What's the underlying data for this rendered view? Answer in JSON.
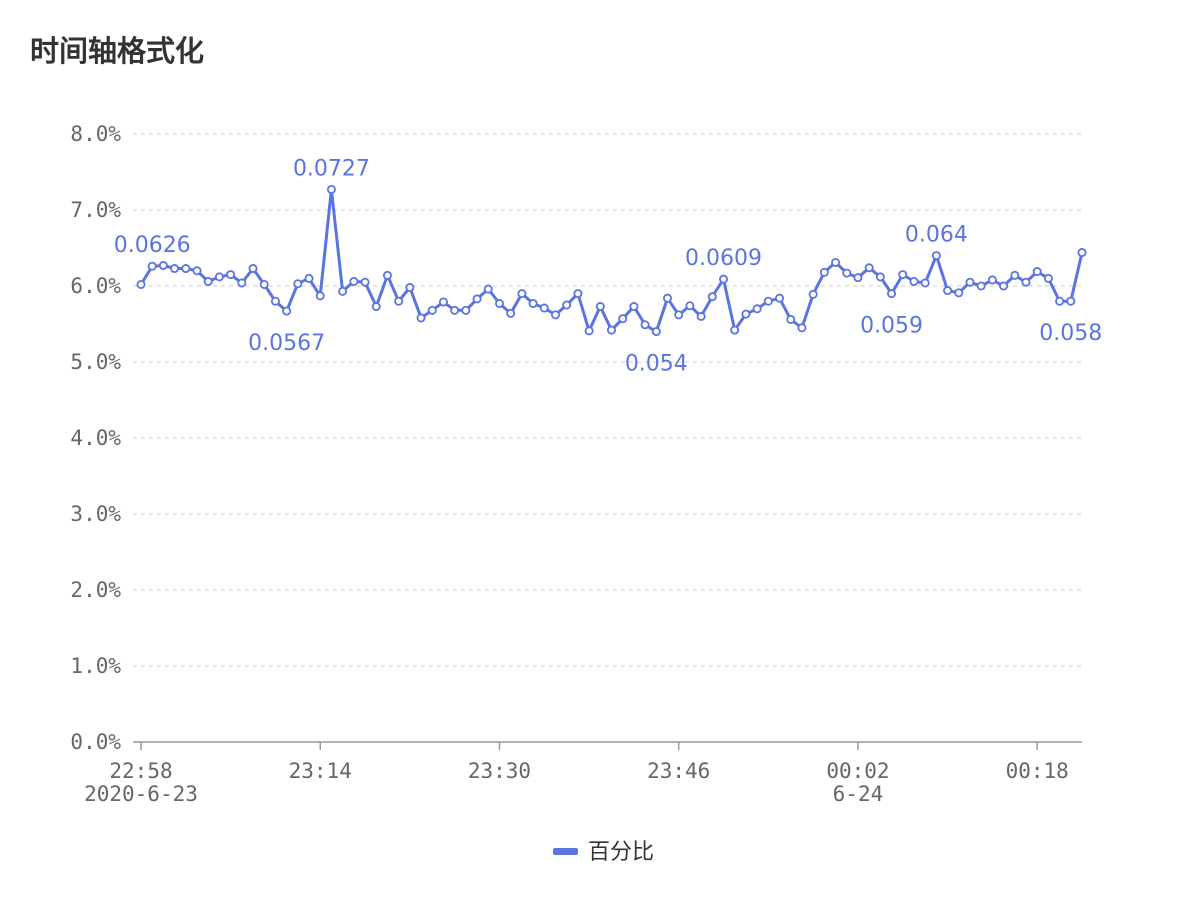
{
  "title": "时间轴格式化",
  "chart_data": {
    "type": "line",
    "title": "时间轴格式化",
    "ylim": [
      0,
      0.08
    ],
    "y_ticks": [
      "0.0%",
      "1.0%",
      "2.0%",
      "3.0%",
      "4.0%",
      "5.0%",
      "6.0%",
      "7.0%",
      "8.0%"
    ],
    "y_tick_values": [
      0,
      0.01,
      0.02,
      0.03,
      0.04,
      0.05,
      0.06,
      0.07,
      0.08
    ],
    "x_range_minutes": [
      0,
      84
    ],
    "x_ticks": [
      {
        "minute": 0,
        "label": "22:58",
        "sublabel": "2020-6-23"
      },
      {
        "minute": 16,
        "label": "23:14",
        "sublabel": ""
      },
      {
        "minute": 32,
        "label": "23:30",
        "sublabel": ""
      },
      {
        "minute": 48,
        "label": "23:46",
        "sublabel": ""
      },
      {
        "minute": 64,
        "label": "00:02",
        "sublabel": "6-24"
      },
      {
        "minute": 80,
        "label": "00:18",
        "sublabel": ""
      }
    ],
    "grid": true,
    "legend": "bottom-center",
    "series": [
      {
        "name": "百分比",
        "color": "#5b74e0",
        "values": [
          0.0602,
          0.0626,
          0.0627,
          0.0623,
          0.0623,
          0.062,
          0.0606,
          0.0612,
          0.0615,
          0.0604,
          0.0623,
          0.0602,
          0.058,
          0.0567,
          0.0603,
          0.061,
          0.0587,
          0.0727,
          0.0593,
          0.0606,
          0.0605,
          0.0573,
          0.0614,
          0.058,
          0.0598,
          0.0558,
          0.0568,
          0.0579,
          0.0568,
          0.0568,
          0.0583,
          0.0596,
          0.0577,
          0.0564,
          0.059,
          0.0577,
          0.0571,
          0.0562,
          0.0575,
          0.059,
          0.0541,
          0.0573,
          0.0542,
          0.0557,
          0.0573,
          0.0549,
          0.054,
          0.0584,
          0.0562,
          0.0574,
          0.056,
          0.0586,
          0.0609,
          0.0542,
          0.0563,
          0.057,
          0.058,
          0.0584,
          0.0556,
          0.0545,
          0.0589,
          0.0618,
          0.0631,
          0.0617,
          0.0611,
          0.0624,
          0.0612,
          0.059,
          0.0615,
          0.0606,
          0.0604,
          0.064,
          0.0594,
          0.0591,
          0.0605,
          0.06,
          0.0608,
          0.06,
          0.0614,
          0.0605,
          0.0619,
          0.061,
          0.058,
          0.058,
          0.0644
        ],
        "annotations": [
          {
            "index": 1,
            "text": "0.0626",
            "position": "above"
          },
          {
            "index": 13,
            "text": "0.0567",
            "position": "below"
          },
          {
            "index": 17,
            "text": "0.0727",
            "position": "above"
          },
          {
            "index": 46,
            "text": "0.054",
            "position": "below"
          },
          {
            "index": 52,
            "text": "0.0609",
            "position": "above"
          },
          {
            "index": 67,
            "text": "0.059",
            "position": "below"
          },
          {
            "index": 71,
            "text": "0.064",
            "position": "above"
          },
          {
            "index": 83,
            "text": "0.058",
            "position": "below"
          }
        ]
      }
    ]
  }
}
